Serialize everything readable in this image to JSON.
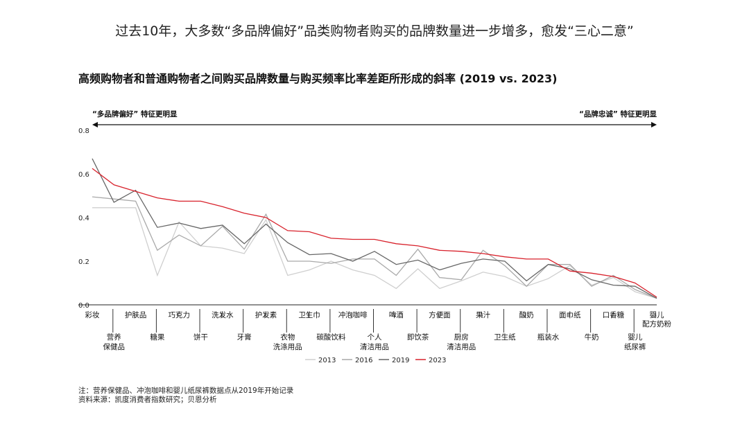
{
  "headline": "过去10年，大多数“多品牌偏好”品类购物者购买的品牌数量进一步增多，愈发“三心二意”",
  "chart_data": {
    "type": "line",
    "title": "高频购物者和普通购物者之间购买品牌数量与购买频率比率差距所形成的斜率 (2019 vs. 2023)",
    "left_annotation": "“多品牌偏好” 特征更明显",
    "right_annotation": "“品牌忠诚” 特征更明显",
    "ylim": [
      0,
      0.8
    ],
    "yticks": [
      "0.0",
      "0.2",
      "0.4",
      "0.6",
      "0.8"
    ],
    "categories": [
      "彩妆",
      "营养\n保健品",
      "护肤品",
      "糖果",
      "巧克力",
      "饼干",
      "洗发水",
      "牙膏",
      "护发素",
      "衣物\n洗涤用品",
      "卫生巾",
      "碳酸饮料",
      "冲泡咖啡",
      "个人\n清洁用品",
      "啤酒",
      "即饮茶",
      "方便面",
      "厨房\n清洁用品",
      "果汁",
      "卫生纸",
      "酸奶",
      "瓶装水",
      "面巾纸",
      "牛奶",
      "口香糖",
      "婴儿\n纸尿裤",
      "婴儿\n配方奶粉"
    ],
    "series": [
      {
        "name": "2013",
        "color": "#cfcfcf",
        "values": [
          0.445,
          0.445,
          0.445,
          0.135,
          0.38,
          0.27,
          0.26,
          0.235,
          0.39,
          0.135,
          0.16,
          0.2,
          0.16,
          0.135,
          0.075,
          0.165,
          0.075,
          0.11,
          0.15,
          0.13,
          0.085,
          0.12,
          0.18,
          0.09,
          0.125,
          0.06,
          0.03
        ]
      },
      {
        "name": "2016",
        "color": "#a9a9a9",
        "values": [
          0.495,
          0.485,
          0.475,
          0.25,
          0.32,
          0.27,
          0.36,
          0.255,
          0.415,
          0.2,
          0.2,
          0.19,
          0.21,
          0.21,
          0.135,
          0.255,
          0.125,
          0.115,
          0.25,
          0.18,
          0.085,
          0.185,
          0.185,
          0.085,
          0.135,
          0.07,
          0.03
        ]
      },
      {
        "name": "2019",
        "color": "#666666",
        "values": [
          0.67,
          0.47,
          0.525,
          0.355,
          0.375,
          0.35,
          0.365,
          0.28,
          0.37,
          0.285,
          0.23,
          0.235,
          0.2,
          0.245,
          0.185,
          0.205,
          0.16,
          0.19,
          0.21,
          0.2,
          0.11,
          0.185,
          0.165,
          0.115,
          0.09,
          0.085,
          0.03
        ]
      },
      {
        "name": "2023",
        "color": "#d8212b",
        "values": [
          0.625,
          0.55,
          0.52,
          0.49,
          0.475,
          0.475,
          0.45,
          0.42,
          0.4,
          0.34,
          0.335,
          0.305,
          0.3,
          0.3,
          0.28,
          0.27,
          0.25,
          0.245,
          0.235,
          0.22,
          0.21,
          0.21,
          0.155,
          0.145,
          0.13,
          0.1,
          0.035
        ]
      }
    ]
  },
  "notes": {
    "line1": "注：营养保健品、冲泡咖啡和婴儿纸尿裤数据点从2019年开始记录",
    "line2": "资料来源：凯度消费者指数研究；贝恩分析"
  }
}
